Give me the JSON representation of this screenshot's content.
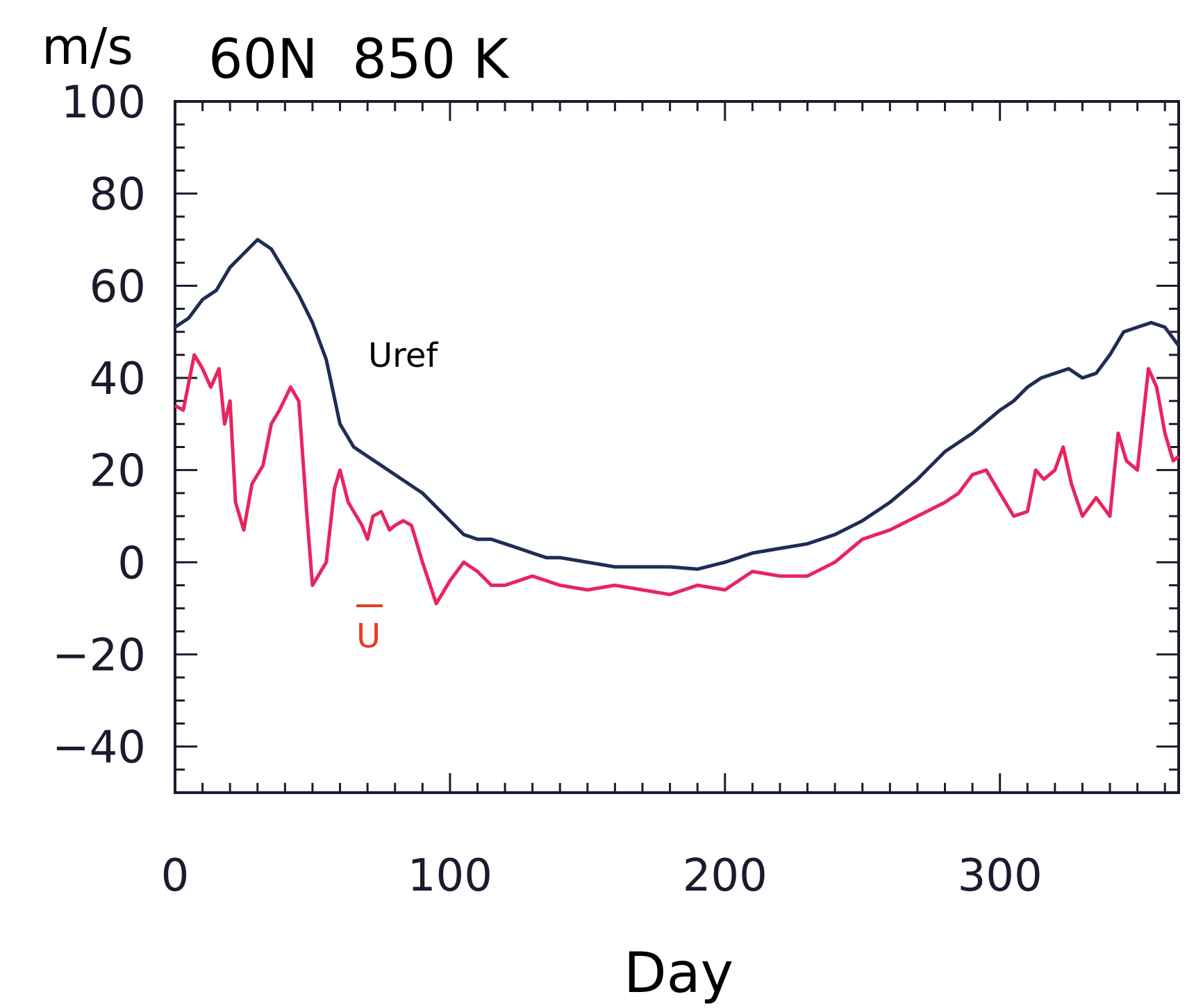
{
  "chart_data": {
    "type": "line",
    "title": "60N  850 K",
    "ylabel": "m/s",
    "xlabel": "Day",
    "xlim": [
      0,
      365
    ],
    "ylim": [
      -50,
      100
    ],
    "x_ticks": [
      0,
      100,
      200,
      300
    ],
    "x_tick_labels": [
      "0",
      "100",
      "200",
      "300"
    ],
    "y_ticks": [
      100,
      80,
      60,
      40,
      20,
      0,
      -20,
      -40
    ],
    "y_tick_labels": [
      "100",
      "80",
      "60",
      "40",
      "20",
      "0",
      "−20",
      "−40"
    ],
    "grid": false,
    "series": [
      {
        "name": "Uref",
        "color": "#1f2d55",
        "x": [
          0,
          5,
          10,
          15,
          20,
          25,
          30,
          35,
          40,
          45,
          50,
          55,
          60,
          65,
          70,
          75,
          80,
          85,
          90,
          95,
          100,
          105,
          110,
          115,
          120,
          125,
          130,
          135,
          140,
          145,
          150,
          160,
          170,
          180,
          190,
          200,
          210,
          220,
          230,
          240,
          250,
          260,
          270,
          280,
          290,
          300,
          305,
          310,
          315,
          320,
          325,
          330,
          335,
          340,
          345,
          350,
          355,
          360,
          365
        ],
        "y": [
          51,
          53,
          57,
          59,
          64,
          67,
          70,
          68,
          63,
          58,
          52,
          44,
          30,
          25,
          23,
          21,
          19,
          17,
          15,
          12,
          9,
          6,
          5,
          5,
          4,
          3,
          2,
          1,
          1,
          0.5,
          0,
          -1,
          -1,
          -1,
          -1.5,
          0,
          2,
          3,
          4,
          6,
          9,
          13,
          18,
          24,
          28,
          33,
          35,
          38,
          40,
          41,
          42,
          40,
          41,
          45,
          50,
          51,
          52,
          51,
          47
        ]
      },
      {
        "name": "U",
        "color": "#e8245e",
        "x": [
          0,
          3,
          7,
          10,
          13,
          16,
          18,
          20,
          22,
          25,
          28,
          32,
          35,
          38,
          42,
          45,
          48,
          50,
          52,
          55,
          58,
          60,
          63,
          66,
          68,
          70,
          72,
          75,
          78,
          80,
          83,
          86,
          90,
          95,
          100,
          105,
          110,
          115,
          120,
          130,
          140,
          150,
          160,
          170,
          180,
          190,
          200,
          210,
          220,
          230,
          240,
          250,
          260,
          270,
          280,
          285,
          290,
          295,
          300,
          305,
          310,
          313,
          316,
          320,
          323,
          326,
          330,
          335,
          340,
          343,
          346,
          350,
          354,
          357,
          360,
          363,
          365
        ],
        "y": [
          34,
          33,
          45,
          42,
          38,
          42,
          30,
          35,
          13,
          7,
          17,
          21,
          30,
          33,
          38,
          35,
          10,
          -5,
          -3,
          0,
          16,
          20,
          13,
          10,
          8,
          5,
          10,
          11,
          7,
          8,
          9,
          8,
          0,
          -9,
          -4,
          0,
          -2,
          -5,
          -5,
          -3,
          -5,
          -6,
          -5,
          -6,
          -7,
          -5,
          -6,
          -2,
          -3,
          -3,
          0,
          5,
          7,
          10,
          13,
          15,
          19,
          20,
          15,
          10,
          11,
          20,
          18,
          20,
          25,
          17,
          10,
          14,
          10,
          28,
          22,
          20,
          42,
          38,
          28,
          22,
          23
        ]
      }
    ],
    "annotations": [
      {
        "text": "Uref",
        "color": "#000000"
      },
      {
        "text": "U",
        "color": "#e83a1e",
        "overbar": true
      }
    ]
  }
}
